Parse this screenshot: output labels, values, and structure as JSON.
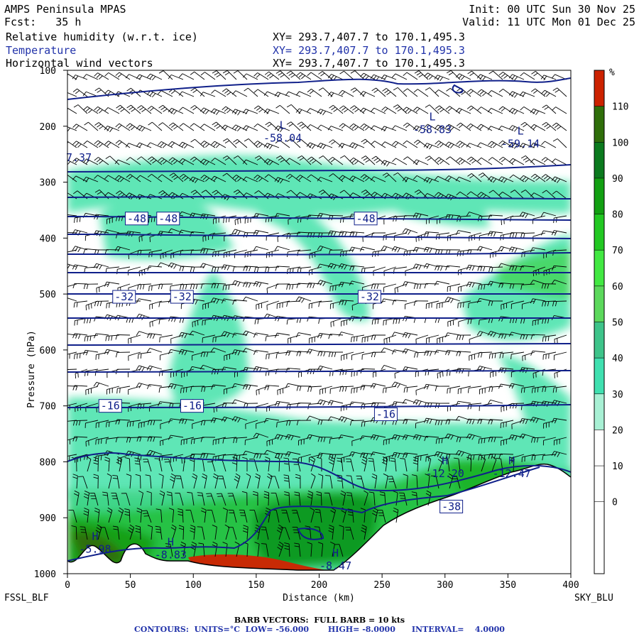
{
  "header": {
    "model": "AMPS Peninsula MPAS",
    "forecast": "Fcst:   35 h",
    "init": "Init: 00 UTC Sun 30 Nov 25",
    "valid": "Valid: 11 UTC Mon 01 Dec 25",
    "fields": [
      {
        "name": "Relative humidity (w.r.t. ice)",
        "xy": "XY= 293.7,407.7 to 170.1,495.3",
        "color": "#000000"
      },
      {
        "name": "Temperature",
        "xy": "XY= 293.7,407.7 to 170.1,495.3",
        "color": "#2233aa"
      },
      {
        "name": "Horizontal wind vectors",
        "xy": "XY= 293.7,407.7 to 170.1,495.3",
        "color": "#000000"
      }
    ]
  },
  "footer": {
    "barb": "BARB VECTORS:  FULL BARB = 10 kts",
    "contours": "CONTOURS:  UNITS=°C  LOW= -56.000       HIGH= -8.0000      INTERVAL=    4.0000"
  },
  "chart_data": {
    "type": "cross-section",
    "xlabel": "Distance (km)",
    "ylabel": "Pressure (hPa)",
    "x_ticks": [
      0,
      50,
      100,
      150,
      200,
      250,
      300,
      350,
      400
    ],
    "y_ticks": [
      100,
      200,
      300,
      400,
      500,
      600,
      700,
      800,
      900,
      1000
    ],
    "xlim": [
      0,
      400
    ],
    "ylim": [
      1000,
      100
    ],
    "left_endpoint": "FSSL_BLF",
    "right_endpoint": "SKY_BLU",
    "colorbar": {
      "unit": "%",
      "labels": [
        "110",
        "100",
        "90",
        "80",
        "70",
        "60",
        "50",
        "40",
        "30",
        "20",
        "10",
        "0"
      ],
      "colors": [
        "#cc2200",
        "#2f6e0a",
        "#0b7a1e",
        "#12a012",
        "#22c822",
        "#42e842",
        "#5cd85c",
        "#3ec48a",
        "#40e0b0",
        "#a8f0d4",
        "#ffffff",
        "#ffffff",
        "#ffffff",
        "#ffffff"
      ]
    },
    "temperature_contours": [
      {
        "label": "-48",
        "x_km": 55,
        "p": 365
      },
      {
        "label": "-48",
        "x_km": 80,
        "p": 365
      },
      {
        "label": "-48",
        "x_km": 237,
        "p": 365
      },
      {
        "label": "-32",
        "x_km": 45,
        "p": 505
      },
      {
        "label": "-32",
        "x_km": 91,
        "p": 505
      },
      {
        "label": "-32",
        "x_km": 240,
        "p": 505
      },
      {
        "label": "-16",
        "x_km": 34,
        "p": 700
      },
      {
        "label": "-16",
        "x_km": 99,
        "p": 700
      },
      {
        "label": "-16",
        "x_km": 253,
        "p": 715
      },
      {
        "label": "-38",
        "x_km": 305,
        "p": 880
      }
    ],
    "extrema": [
      {
        "type": "L",
        "value": "-58.04",
        "x_km": 171,
        "p": 220
      },
      {
        "type": "L",
        "value": "-58.83",
        "x_km": 290,
        "p": 205
      },
      {
        "type": "L",
        "value": "-59.14",
        "x_km": 360,
        "p": 230
      },
      {
        "type": "H",
        "value": "-12.20",
        "x_km": 300,
        "p": 820
      },
      {
        "type": "H",
        "value": "-12.47",
        "x_km": 353,
        "p": 820
      },
      {
        "type": "H",
        "value": "-5.98",
        "x_km": 22,
        "p": 955
      },
      {
        "type": "H",
        "value": "-8.83",
        "x_km": 82,
        "p": 965
      },
      {
        "type": "H",
        "value": "-8.47",
        "x_km": 213,
        "p": 985
      }
    ],
    "edge_label": {
      "value": "7.37",
      "x_km": 0,
      "p": 265
    }
  }
}
